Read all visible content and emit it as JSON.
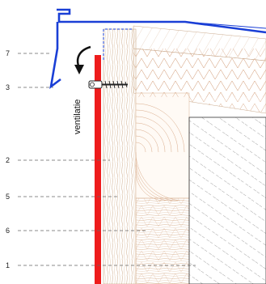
{
  "labels": {
    "ventilation": "ventilatie"
  },
  "callouts": [
    {
      "id": "c7",
      "number": "7"
    },
    {
      "id": "c3",
      "number": "3"
    },
    {
      "id": "c2",
      "number": "2"
    },
    {
      "id": "c5",
      "number": "5"
    },
    {
      "id": "c6",
      "number": "6"
    },
    {
      "id": "c1",
      "number": "1"
    }
  ],
  "colors": {
    "flashing": "#1a3fd6",
    "cladding": "#ee1c1c",
    "wood_grain": "#c8a07a",
    "hatch": "#555555",
    "leader": "#666666"
  }
}
